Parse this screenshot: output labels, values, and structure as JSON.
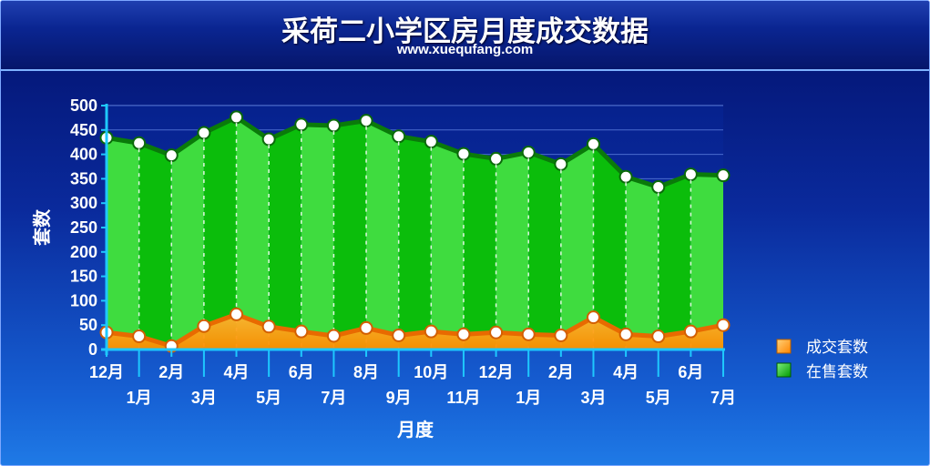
{
  "colors": {
    "on_sale": "#0bbd0b",
    "on_sale_light": "#3fdc3f",
    "on_sale_line": "#0a7a0a",
    "deals": "#ff9a1a",
    "deals_line": "#e86a00",
    "grid": "#6d8ee6"
  },
  "chart_data": {
    "type": "area",
    "title": "采荷二小学区房月度成交数据",
    "subtitle": "www.xuequfang.com",
    "xlabel": "月度",
    "ylabel": "套数",
    "ylim": [
      0,
      500
    ],
    "yticks": [
      0,
      50,
      100,
      150,
      200,
      250,
      300,
      350,
      400,
      450,
      500
    ],
    "categories": [
      "12月",
      "1月",
      "2月",
      "3月",
      "4月",
      "5月",
      "6月",
      "7月",
      "8月",
      "9月",
      "10月",
      "11月",
      "12月",
      "1月",
      "2月",
      "3月",
      "4月",
      "5月",
      "6月",
      "7月"
    ],
    "series": [
      {
        "name": "成交套数",
        "values": [
          35,
          27,
          7,
          48,
          72,
          47,
          37,
          28,
          44,
          29,
          37,
          31,
          35,
          31,
          29,
          66,
          31,
          27,
          37,
          50
        ]
      },
      {
        "name": "在售套数",
        "values": [
          434,
          423,
          398,
          444,
          476,
          431,
          461,
          459,
          469,
          437,
          426,
          401,
          391,
          404,
          380,
          421,
          354,
          333,
          359,
          357
        ]
      }
    ],
    "grid": true,
    "legend_position": "right"
  }
}
